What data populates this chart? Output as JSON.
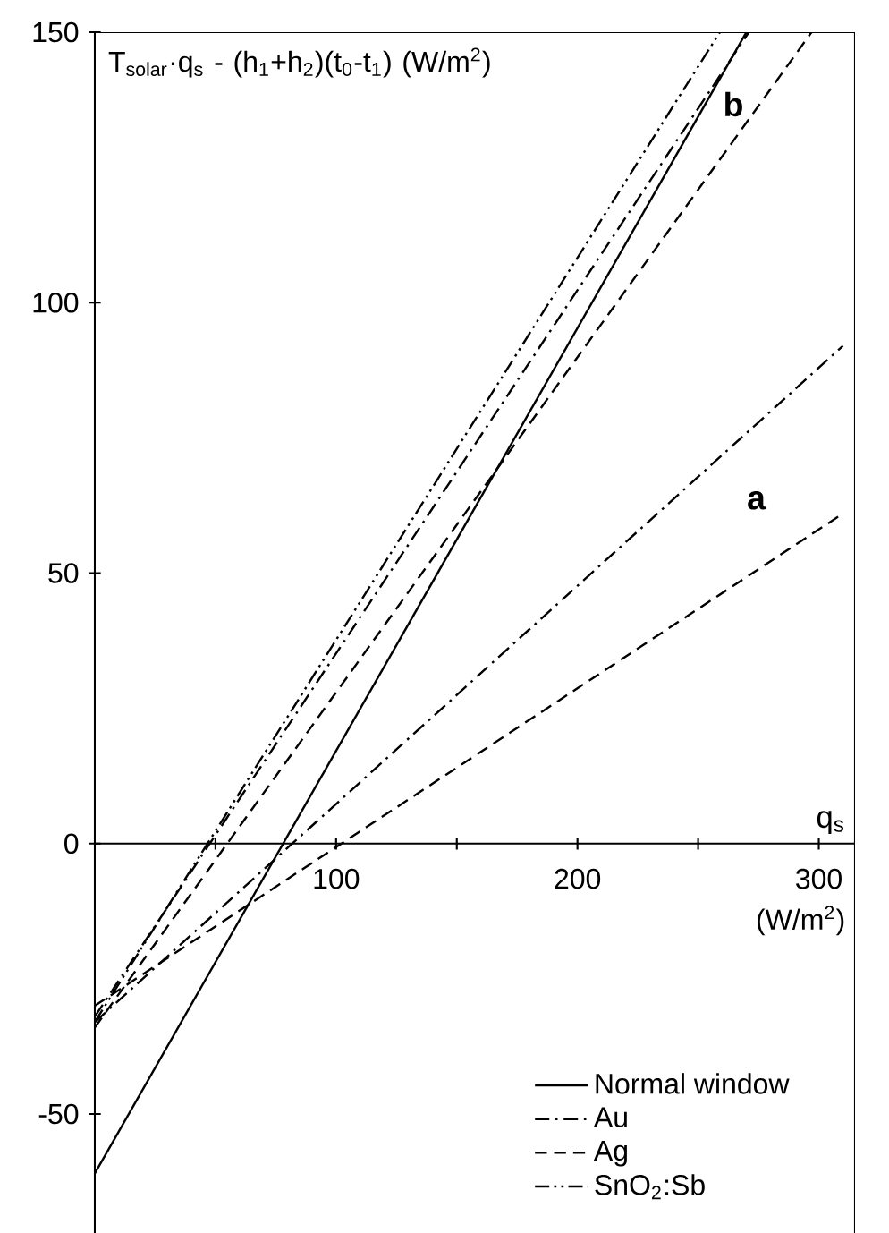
{
  "chart_data": {
    "type": "line",
    "xlabel": "q$_{s}$",
    "ylabel": "T$_{solar}$·q$_{s}$ - (h$_{1}$+h$_{2}$)(t$_{0}$-t$_{1}$) (W/m$^{2}$)",
    "xlim": [
      0,
      315
    ],
    "ylim": [
      -72,
      150
    ],
    "xticks": [
      {
        "value": 50,
        "label": null
      },
      100,
      {
        "value": 150,
        "label": null
      },
      200,
      {
        "value": 250,
        "label": null
      },
      300
    ],
    "yticks": [
      -50,
      0,
      50,
      100,
      150
    ],
    "marker": "none",
    "legend": "bottom right",
    "series": [
      {
        "name": "Normal window",
        "color": "#000000",
        "line_style": "solid",
        "x": [
          0,
          270
        ],
        "values": [
          -61,
          150
        ]
      },
      {
        "name": "Au",
        "color": "#000000",
        "line_style": "dashdot",
        "x": [
          0,
          271
        ],
        "values": [
          -32,
          150
        ]
      },
      {
        "name": "Ag",
        "color": "#000000",
        "line_style": "dashed",
        "x": [
          0,
          297
        ],
        "values": [
          -34,
          150
        ]
      },
      {
        "name": "SnO$_{2}$:Sb",
        "color": "#000000",
        "line_style": "dashdotdot",
        "x": [
          0,
          259
        ],
        "values": [
          -33,
          150
        ]
      },
      {
        "color": "#000000",
        "line_style": "dashdot",
        "x": [
          0,
          310
        ],
        "values": [
          -33,
          92
        ]
      },
      {
        "color": "#000000",
        "line_style": "dashed",
        "x": [
          0,
          310
        ],
        "values": [
          -30,
          61
        ]
      }
    ],
    "annotations": [
      "b",
      "a",
      "(W/m$^{2}$)"
    ]
  }
}
